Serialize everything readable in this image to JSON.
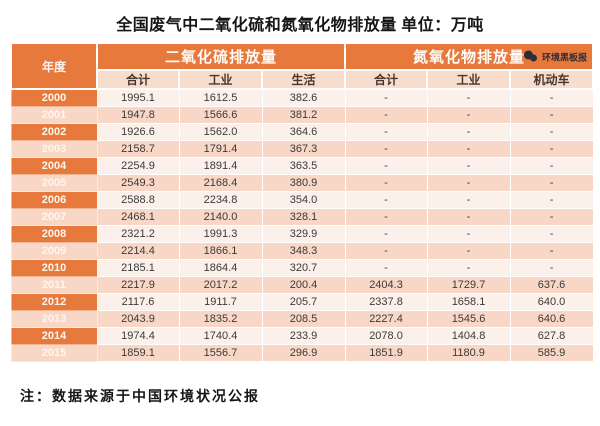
{
  "title": "全国废气中二氧化硫和氮氧化物排放量  单位：万吨",
  "note": "注：数据来源于中国环境状况公报",
  "logo": {
    "text": "环境黑板报",
    "icon": "chat-bubbles-icon"
  },
  "colors": {
    "header_orange": "#E6793B",
    "subheader_bg": "#F8DCCC",
    "row_light": "#FCF0EA",
    "row_dark": "#F8D7C7",
    "logo_dark": "#2E2D38"
  },
  "table": {
    "year_header": "年度",
    "so2_group": "二氧化硫排放量",
    "nox_group": "氮氧化物排放量",
    "sub_headers": [
      "合计",
      "工业",
      "生活",
      "合计",
      "工业",
      "机动车"
    ]
  },
  "chart_data": {
    "type": "table",
    "title": "全国废气中二氧化硫和氮氧化物排放量",
    "unit": "万吨",
    "row_header": "年度",
    "column_groups": [
      {
        "group": "二氧化硫排放量",
        "columns": [
          "合计",
          "工业",
          "生活"
        ]
      },
      {
        "group": "氮氧化物排放量",
        "columns": [
          "合计",
          "工业",
          "机动车"
        ]
      }
    ],
    "missing_value_symbol": "-",
    "rows": [
      [
        "2000",
        "1995.1",
        "1612.5",
        "382.6",
        "-",
        "-",
        "-"
      ],
      [
        "2001",
        "1947.8",
        "1566.6",
        "381.2",
        "-",
        "-",
        "-"
      ],
      [
        "2002",
        "1926.6",
        "1562.0",
        "364.6",
        "-",
        "-",
        "-"
      ],
      [
        "2003",
        "2158.7",
        "1791.4",
        "367.3",
        "-",
        "-",
        "-"
      ],
      [
        "2004",
        "2254.9",
        "1891.4",
        "363.5",
        "-",
        "-",
        "-"
      ],
      [
        "2005",
        "2549.3",
        "2168.4",
        "380.9",
        "-",
        "-",
        "-"
      ],
      [
        "2006",
        "2588.8",
        "2234.8",
        "354.0",
        "-",
        "-",
        "-"
      ],
      [
        "2007",
        "2468.1",
        "2140.0",
        "328.1",
        "-",
        "-",
        "-"
      ],
      [
        "2008",
        "2321.2",
        "1991.3",
        "329.9",
        "-",
        "-",
        "-"
      ],
      [
        "2009",
        "2214.4",
        "1866.1",
        "348.3",
        "-",
        "-",
        "-"
      ],
      [
        "2010",
        "2185.1",
        "1864.4",
        "320.7",
        "-",
        "-",
        "-"
      ],
      [
        "2011",
        "2217.9",
        "2017.2",
        "200.4",
        "2404.3",
        "1729.7",
        "637.6"
      ],
      [
        "2012",
        "2117.6",
        "1911.7",
        "205.7",
        "2337.8",
        "1658.1",
        "640.0"
      ],
      [
        "2013",
        "2043.9",
        "1835.2",
        "208.5",
        "2227.4",
        "1545.6",
        "640.6"
      ],
      [
        "2014",
        "1974.4",
        "1740.4",
        "233.9",
        "2078.0",
        "1404.8",
        "627.8"
      ],
      [
        "2015",
        "1859.1",
        "1556.7",
        "296.9",
        "1851.9",
        "1180.9",
        "585.9"
      ]
    ]
  }
}
